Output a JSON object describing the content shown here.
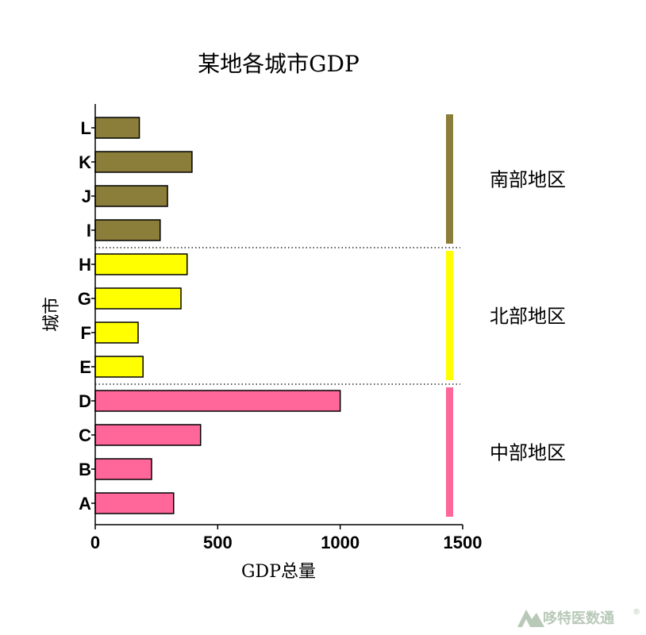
{
  "chart_data": {
    "type": "bar",
    "orientation": "horizontal",
    "title": "某地各城市GDP",
    "xlabel": "GDP总量",
    "ylabel": "城市",
    "xlim": [
      0,
      1500
    ],
    "xticks": [
      0,
      500,
      1000,
      1500
    ],
    "grid": false,
    "categories": [
      "A",
      "B",
      "C",
      "D",
      "E",
      "F",
      "G",
      "H",
      "I",
      "J",
      "K",
      "L"
    ],
    "values": [
      320,
      230,
      430,
      1000,
      195,
      175,
      350,
      375,
      265,
      295,
      395,
      180
    ],
    "groups": [
      {
        "name": "中部地区",
        "categories": [
          "A",
          "B",
          "C",
          "D"
        ],
        "color": "#FF6699"
      },
      {
        "name": "北部地区",
        "categories": [
          "E",
          "F",
          "G",
          "H"
        ],
        "color": "#FFFF00"
      },
      {
        "name": "南部地区",
        "categories": [
          "I",
          "J",
          "K",
          "L"
        ],
        "color": "#8B7D3A"
      }
    ]
  },
  "watermark": {
    "text": "哆特医数通",
    "icon": "mountain-logo-icon",
    "color": "#b8c9b8"
  }
}
